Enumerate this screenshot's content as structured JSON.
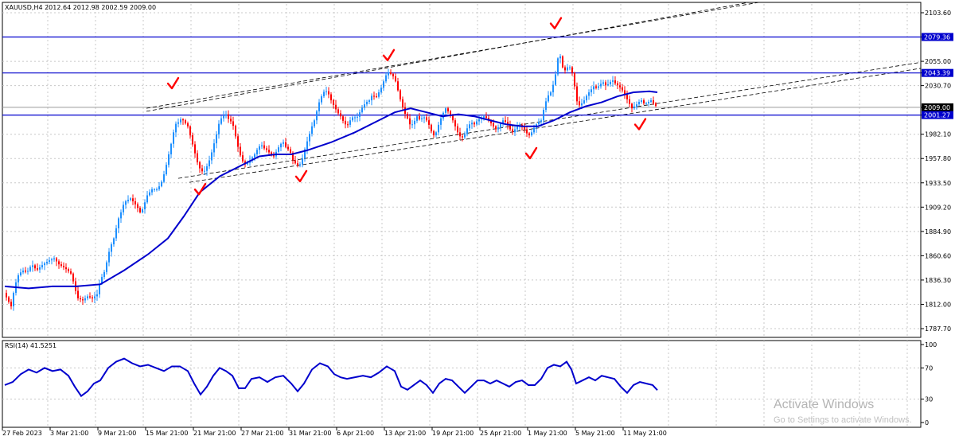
{
  "header": {
    "symbol_line": "XAUUSD,H4  2012.64 2012.98 2002.59 2009.00"
  },
  "indicator": {
    "label": "RSI(14) 41.5251"
  },
  "watermark": {
    "title": "Activate Windows",
    "subtitle": "Go to Settings to activate Windows."
  },
  "colors": {
    "bull": "#1e90ff",
    "bear": "#ff0000",
    "ma": "#0000cd",
    "level": "#0000cd",
    "check": "#ff0000",
    "grid": "#c8c8c8"
  },
  "chart_data": [
    {
      "type": "candlestick",
      "symbol": "XAUUSD",
      "timeframe": "H4",
      "ohlc_last": {
        "open": 2012.64,
        "high": 2012.98,
        "low": 2002.59,
        "close": 2009.0
      },
      "y_ticks": [
        2103.6,
        2079.36,
        2055.0,
        2043.39,
        2030.7,
        2009.0,
        2001.27,
        1982.1,
        1957.8,
        1933.5,
        1909.2,
        1884.9,
        1860.6,
        1836.3,
        1812.0,
        1787.7
      ],
      "ylim": [
        1778,
        2112
      ],
      "x_labels": [
        "27 Feb 2023",
        "3 Mar 21:00",
        "9 Mar 21:00",
        "15 Mar 21:00",
        "21 Mar 21:00",
        "27 Mar 21:00",
        "31 Mar 21:00",
        "6 Apr 21:00",
        "13 Apr 21:00",
        "19 Apr 21:00",
        "25 Apr 21:00",
        "1 May 21:00",
        "5 May 21:00",
        "11 May 21:00"
      ],
      "horizontal_levels": [
        2079.36,
        2043.39,
        2001.27
      ],
      "current_price": 2009.0,
      "price_path": [
        [
          0,
          1822
        ],
        [
          8,
          1810
        ],
        [
          12,
          1828
        ],
        [
          16,
          1840
        ],
        [
          22,
          1846
        ],
        [
          28,
          1844
        ],
        [
          34,
          1852
        ],
        [
          40,
          1846
        ],
        [
          48,
          1852
        ],
        [
          56,
          1856
        ],
        [
          62,
          1858
        ],
        [
          68,
          1852
        ],
        [
          76,
          1848
        ],
        [
          84,
          1842
        ],
        [
          88,
          1828
        ],
        [
          92,
          1818
        ],
        [
          98,
          1816
        ],
        [
          104,
          1820
        ],
        [
          110,
          1818
        ],
        [
          116,
          1822
        ],
        [
          120,
          1836
        ],
        [
          126,
          1846
        ],
        [
          130,
          1862
        ],
        [
          134,
          1872
        ],
        [
          138,
          1880
        ],
        [
          142,
          1896
        ],
        [
          146,
          1904
        ],
        [
          150,
          1914
        ],
        [
          154,
          1916
        ],
        [
          158,
          1918
        ],
        [
          162,
          1914
        ],
        [
          166,
          1910
        ],
        [
          170,
          1904
        ],
        [
          174,
          1908
        ],
        [
          178,
          1920
        ],
        [
          182,
          1924
        ],
        [
          186,
          1928
        ],
        [
          190,
          1926
        ],
        [
          194,
          1930
        ],
        [
          198,
          1936
        ],
        [
          202,
          1948
        ],
        [
          206,
          1962
        ],
        [
          210,
          1976
        ],
        [
          214,
          1992
        ],
        [
          218,
          1994
        ],
        [
          222,
          1998
        ],
        [
          226,
          1994
        ],
        [
          230,
          1990
        ],
        [
          234,
          1978
        ],
        [
          238,
          1966
        ],
        [
          242,
          1954
        ],
        [
          246,
          1946
        ],
        [
          250,
          1944
        ],
        [
          254,
          1950
        ],
        [
          258,
          1958
        ],
        [
          262,
          1970
        ],
        [
          266,
          1982
        ],
        [
          270,
          1996
        ],
        [
          274,
          2000
        ],
        [
          278,
          2002
        ],
        [
          282,
          1996
        ],
        [
          286,
          1994
        ],
        [
          290,
          1980
        ],
        [
          294,
          1966
        ],
        [
          298,
          1956
        ],
        [
          302,
          1952
        ],
        [
          306,
          1954
        ],
        [
          310,
          1958
        ],
        [
          314,
          1962
        ],
        [
          318,
          1968
        ],
        [
          322,
          1972
        ],
        [
          326,
          1968
        ],
        [
          330,
          1966
        ],
        [
          334,
          1962
        ],
        [
          338,
          1960
        ],
        [
          342,
          1966
        ],
        [
          346,
          1972
        ],
        [
          350,
          1974
        ],
        [
          354,
          1968
        ],
        [
          358,
          1966
        ],
        [
          362,
          1956
        ],
        [
          366,
          1952
        ],
        [
          370,
          1950
        ],
        [
          374,
          1958
        ],
        [
          378,
          1970
        ],
        [
          382,
          1980
        ],
        [
          386,
          1990
        ],
        [
          390,
          1998
        ],
        [
          394,
          2012
        ],
        [
          398,
          2020
        ],
        [
          402,
          2026
        ],
        [
          406,
          2024
        ],
        [
          410,
          2016
        ],
        [
          414,
          2010
        ],
        [
          418,
          2004
        ],
        [
          422,
          2000
        ],
        [
          426,
          1994
        ],
        [
          430,
          1990
        ],
        [
          434,
          1996
        ],
        [
          438,
          2000
        ],
        [
          442,
          1998
        ],
        [
          446,
          2004
        ],
        [
          450,
          2010
        ],
        [
          454,
          2014
        ],
        [
          458,
          2016
        ],
        [
          462,
          2022
        ],
        [
          466,
          2018
        ],
        [
          470,
          2024
        ],
        [
          474,
          2030
        ],
        [
          478,
          2040
        ],
        [
          482,
          2044
        ],
        [
          486,
          2042
        ],
        [
          490,
          2038
        ],
        [
          494,
          2026
        ],
        [
          498,
          2014
        ],
        [
          502,
          2004
        ],
        [
          506,
          1998
        ],
        [
          510,
          1990
        ],
        [
          514,
          1994
        ],
        [
          518,
          2000
        ],
        [
          522,
          1996
        ],
        [
          526,
          2000
        ],
        [
          530,
          1996
        ],
        [
          534,
          1990
        ],
        [
          538,
          1980
        ],
        [
          542,
          1984
        ],
        [
          546,
          1994
        ],
        [
          550,
          2002
        ],
        [
          554,
          2008
        ],
        [
          558,
          2004
        ],
        [
          562,
          1998
        ],
        [
          566,
          1990
        ],
        [
          570,
          1982
        ],
        [
          574,
          1978
        ],
        [
          578,
          1982
        ],
        [
          582,
          1990
        ],
        [
          586,
          1994
        ],
        [
          590,
          1992
        ],
        [
          594,
          1996
        ],
        [
          598,
          1998
        ],
        [
          602,
          2000
        ],
        [
          606,
          1998
        ],
        [
          610,
          1994
        ],
        [
          614,
          1990
        ],
        [
          618,
          1986
        ],
        [
          622,
          1992
        ],
        [
          626,
          1996
        ],
        [
          630,
          1994
        ],
        [
          634,
          1988
        ],
        [
          638,
          1984
        ],
        [
          642,
          1988
        ],
        [
          646,
          1992
        ],
        [
          650,
          1990
        ],
        [
          654,
          1986
        ],
        [
          658,
          1980
        ],
        [
          662,
          1984
        ],
        [
          666,
          1990
        ],
        [
          670,
          1994
        ],
        [
          674,
          1996
        ],
        [
          678,
          2010
        ],
        [
          682,
          2020
        ],
        [
          686,
          2024
        ],
        [
          690,
          2034
        ],
        [
          694,
          2050
        ],
        [
          696,
          2066
        ],
        [
          698,
          2060
        ],
        [
          700,
          2050
        ],
        [
          704,
          2046
        ],
        [
          708,
          2050
        ],
        [
          712,
          2048
        ],
        [
          716,
          2030
        ],
        [
          720,
          2010
        ],
        [
          724,
          2012
        ],
        [
          728,
          2016
        ],
        [
          732,
          2022
        ],
        [
          736,
          2026
        ],
        [
          740,
          2030
        ],
        [
          744,
          2028
        ],
        [
          748,
          2032
        ],
        [
          752,
          2034
        ],
        [
          756,
          2030
        ],
        [
          760,
          2034
        ],
        [
          764,
          2036
        ],
        [
          768,
          2032
        ],
        [
          772,
          2030
        ],
        [
          776,
          2026
        ],
        [
          780,
          2020
        ],
        [
          784,
          2014
        ],
        [
          788,
          2008
        ],
        [
          792,
          2010
        ],
        [
          796,
          2014
        ],
        [
          800,
          2016
        ],
        [
          804,
          2012
        ],
        [
          808,
          2014
        ],
        [
          812,
          2016
        ],
        [
          816,
          2012
        ],
        [
          820,
          2009
        ]
      ],
      "moving_average_path": [
        [
          0,
          1830
        ],
        [
          30,
          1828
        ],
        [
          60,
          1830
        ],
        [
          90,
          1830
        ],
        [
          120,
          1832
        ],
        [
          150,
          1846
        ],
        [
          180,
          1862
        ],
        [
          205,
          1878
        ],
        [
          225,
          1900
        ],
        [
          245,
          1924
        ],
        [
          270,
          1940
        ],
        [
          300,
          1952
        ],
        [
          320,
          1960
        ],
        [
          340,
          1962
        ],
        [
          360,
          1962
        ],
        [
          380,
          1966
        ],
        [
          410,
          1974
        ],
        [
          440,
          1984
        ],
        [
          470,
          1996
        ],
        [
          490,
          2004
        ],
        [
          510,
          2008
        ],
        [
          530,
          2004
        ],
        [
          550,
          2000
        ],
        [
          570,
          2002
        ],
        [
          590,
          2000
        ],
        [
          610,
          1996
        ],
        [
          630,
          1992
        ],
        [
          650,
          1990
        ],
        [
          670,
          1990
        ],
        [
          690,
          1996
        ],
        [
          710,
          2004
        ],
        [
          730,
          2010
        ],
        [
          750,
          2014
        ],
        [
          770,
          2020
        ],
        [
          790,
          2024
        ],
        [
          810,
          2025
        ],
        [
          820,
          2024
        ]
      ],
      "trend_lines": [
        {
          "style": "dashed",
          "from": [
            178,
            2005
          ],
          "to": [
            1160,
            2145
          ]
        },
        {
          "style": "dashed",
          "from": [
            178,
            2008
          ],
          "to": [
            1160,
            2142
          ]
        },
        {
          "style": "dashed",
          "from": [
            218,
            1938
          ],
          "to": [
            1160,
            2054
          ]
        },
        {
          "style": "dashed",
          "from": [
            232,
            1934
          ],
          "to": [
            1160,
            2048
          ]
        }
      ],
      "checkmarks": [
        [
          211,
          2032
        ],
        [
          245,
          1926
        ],
        [
          372,
          1939
        ],
        [
          482,
          2060
        ],
        [
          661,
          1962
        ],
        [
          692,
          2092
        ],
        [
          798,
          1991
        ]
      ]
    },
    {
      "type": "line",
      "name": "RSI(14)",
      "value": 41.5251,
      "y_ticks": [
        100,
        70,
        30,
        0
      ],
      "ylim": [
        0,
        100
      ],
      "values_path": [
        [
          0,
          48
        ],
        [
          10,
          52
        ],
        [
          20,
          62
        ],
        [
          30,
          68
        ],
        [
          40,
          64
        ],
        [
          50,
          70
        ],
        [
          60,
          66
        ],
        [
          70,
          68
        ],
        [
          80,
          60
        ],
        [
          88,
          46
        ],
        [
          96,
          34
        ],
        [
          104,
          40
        ],
        [
          112,
          50
        ],
        [
          120,
          54
        ],
        [
          130,
          70
        ],
        [
          140,
          78
        ],
        [
          150,
          82
        ],
        [
          160,
          76
        ],
        [
          170,
          72
        ],
        [
          180,
          74
        ],
        [
          190,
          70
        ],
        [
          200,
          66
        ],
        [
          210,
          72
        ],
        [
          220,
          72
        ],
        [
          230,
          66
        ],
        [
          238,
          50
        ],
        [
          246,
          36
        ],
        [
          254,
          46
        ],
        [
          262,
          60
        ],
        [
          270,
          70
        ],
        [
          278,
          66
        ],
        [
          286,
          60
        ],
        [
          294,
          44
        ],
        [
          302,
          44
        ],
        [
          310,
          56
        ],
        [
          320,
          58
        ],
        [
          330,
          52
        ],
        [
          340,
          58
        ],
        [
          350,
          60
        ],
        [
          360,
          50
        ],
        [
          368,
          40
        ],
        [
          376,
          50
        ],
        [
          386,
          68
        ],
        [
          396,
          76
        ],
        [
          406,
          72
        ],
        [
          414,
          62
        ],
        [
          422,
          58
        ],
        [
          430,
          56
        ],
        [
          440,
          58
        ],
        [
          450,
          60
        ],
        [
          460,
          58
        ],
        [
          470,
          64
        ],
        [
          480,
          72
        ],
        [
          490,
          66
        ],
        [
          498,
          46
        ],
        [
          506,
          42
        ],
        [
          514,
          48
        ],
        [
          522,
          54
        ],
        [
          530,
          48
        ],
        [
          538,
          38
        ],
        [
          546,
          50
        ],
        [
          554,
          56
        ],
        [
          562,
          54
        ],
        [
          570,
          46
        ],
        [
          578,
          38
        ],
        [
          586,
          46
        ],
        [
          594,
          54
        ],
        [
          602,
          54
        ],
        [
          610,
          50
        ],
        [
          618,
          54
        ],
        [
          626,
          50
        ],
        [
          634,
          46
        ],
        [
          642,
          52
        ],
        [
          650,
          54
        ],
        [
          658,
          48
        ],
        [
          666,
          48
        ],
        [
          674,
          56
        ],
        [
          682,
          70
        ],
        [
          690,
          74
        ],
        [
          698,
          72
        ],
        [
          706,
          78
        ],
        [
          712,
          68
        ],
        [
          718,
          50
        ],
        [
          726,
          54
        ],
        [
          734,
          58
        ],
        [
          742,
          54
        ],
        [
          750,
          60
        ],
        [
          758,
          58
        ],
        [
          766,
          56
        ],
        [
          774,
          46
        ],
        [
          782,
          38
        ],
        [
          790,
          48
        ],
        [
          798,
          52
        ],
        [
          806,
          50
        ],
        [
          814,
          48
        ],
        [
          820,
          41.5
        ]
      ]
    }
  ]
}
